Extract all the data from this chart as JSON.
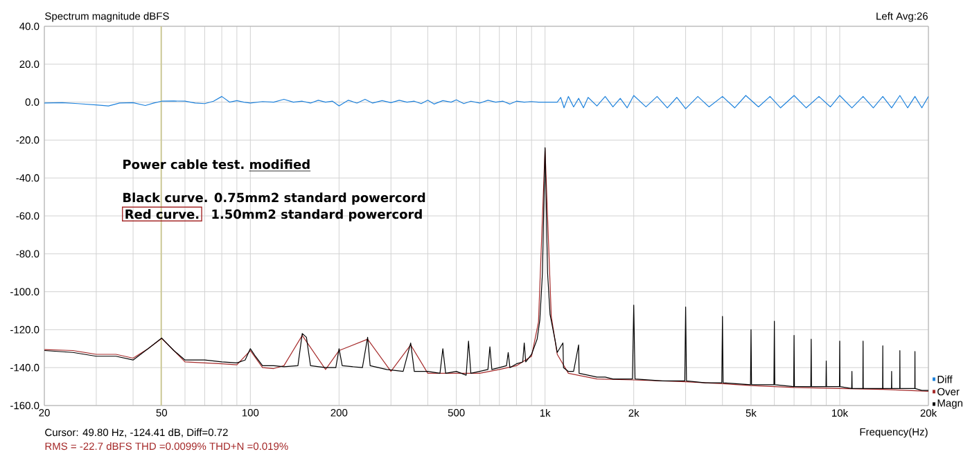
{
  "chart_data": {
    "type": "line",
    "ylabel": "Spectrum magnitude dBFS",
    "xlabel": "Frequency(Hz)",
    "annotations": [
      "Left Avg:26",
      "Power cable test.",
      "modified",
      "Black curve. 0.75mm2 standard powercord",
      "Red curve.",
      "1.50mm2 standard powercord",
      "Cursor: 49.80 Hz, -124.41 dB, Diff=0.72",
      "RMS = -22.7 dBFS THD =0.0099% THD+N =0.019%"
    ],
    "log": "x",
    "grid": true,
    "legend": "bottom right",
    "xlim": [
      20,
      20000
    ],
    "ylim": [
      -160,
      40
    ],
    "xticks": [
      20,
      {
        "value": 30,
        "label": null
      },
      {
        "value": 40,
        "label": null
      },
      50,
      {
        "value": 60,
        "label": null
      },
      {
        "value": 70,
        "label": null
      },
      {
        "value": 80,
        "label": null
      },
      {
        "value": 90,
        "label": null
      },
      100,
      200,
      {
        "value": 300,
        "label": null
      },
      {
        "value": 400,
        "label": null
      },
      500,
      {
        "value": 600,
        "label": null
      },
      {
        "value": 700,
        "label": null
      },
      {
        "value": 800,
        "label": null
      },
      {
        "value": 900,
        "label": null
      },
      {
        "value": 1000,
        "label": "1k"
      },
      {
        "value": 2000,
        "label": "2k"
      },
      {
        "value": 3000,
        "label": null
      },
      {
        "value": 4000,
        "label": null
      },
      {
        "value": 5000,
        "label": "5k"
      },
      {
        "value": 6000,
        "label": null
      },
      {
        "value": 7000,
        "label": null
      },
      {
        "value": 8000,
        "label": null
      },
      {
        "value": 9000,
        "label": null
      },
      {
        "value": 10000,
        "label": "10k"
      },
      {
        "value": 20000,
        "label": "20k"
      }
    ],
    "yticks": [
      {
        "value": 40,
        "label": "40.0"
      },
      {
        "value": 20,
        "label": "20.0"
      },
      {
        "value": 0,
        "label": "0.0"
      },
      {
        "value": -20,
        "label": "-20.0"
      },
      {
        "value": -40,
        "label": "-40.0"
      },
      {
        "value": -60,
        "label": "-60.0"
      },
      {
        "value": -80,
        "label": "-80.0"
      },
      {
        "value": -100,
        "label": "-100.0"
      },
      {
        "value": -120,
        "label": "-120.0"
      },
      {
        "value": -140,
        "label": "-140.0"
      },
      {
        "value": -160,
        "label": "-160.0"
      }
    ],
    "ref_lines": [
      {
        "axis": "x",
        "value": 49.8,
        "color": "#cdc98a"
      }
    ],
    "series": [
      {
        "name": "Diff",
        "color": "#1e82dc",
        "x": [
          20,
          23,
          26,
          30,
          33,
          36,
          40,
          44,
          47,
          50,
          55,
          60,
          65,
          70,
          75,
          80,
          85,
          90,
          95,
          100,
          110,
          120,
          130,
          140,
          150,
          160,
          170,
          180,
          190,
          200,
          215,
          230,
          245,
          260,
          280,
          300,
          320,
          340,
          360,
          380,
          400,
          420,
          450,
          480,
          500,
          530,
          560,
          600,
          640,
          680,
          720,
          760,
          800,
          850,
          900,
          950,
          1000,
          1050,
          1100,
          1130,
          1160,
          1200,
          1250,
          1300,
          1350,
          1400,
          1500,
          1600,
          1700,
          1800,
          1900,
          2000,
          2200,
          2400,
          2600,
          2800,
          3000,
          3300,
          3600,
          4000,
          4400,
          4800,
          5300,
          5800,
          6300,
          7000,
          7700,
          8500,
          9300,
          10000,
          11000,
          12000,
          13000,
          14000,
          15000,
          16000,
          17000,
          18000,
          19000,
          20000
        ],
        "values": [
          -0.5,
          -0.3,
          -0.8,
          -1.5,
          -2,
          -0.5,
          -0.3,
          -1.8,
          -0.5,
          0.5,
          0.6,
          0.5,
          -0.5,
          -0.8,
          0.5,
          3,
          0,
          0.8,
          0,
          -0.5,
          0.3,
          0,
          1.5,
          0,
          0.5,
          -0.5,
          1,
          0,
          0.5,
          -2,
          1,
          -0.5,
          1.5,
          -0.5,
          0.8,
          -0.3,
          1,
          0,
          0.5,
          -0.8,
          1,
          -1,
          0.8,
          0,
          1.2,
          -0.8,
          0.5,
          -0.5,
          1,
          0,
          0.5,
          -1,
          0.5,
          0,
          0.3,
          0,
          0,
          0,
          0,
          2.5,
          -3,
          3,
          -2.5,
          2,
          -3,
          2.5,
          -2,
          3,
          -2.5,
          2,
          -3,
          3.5,
          -2.5,
          3,
          -3,
          2.5,
          -3.5,
          3,
          -2.5,
          3,
          -3,
          3.5,
          -2.5,
          3,
          -3,
          3.5,
          -3,
          3,
          -2.5,
          3.5,
          -3,
          3,
          -3,
          3,
          -3,
          3.5,
          -3,
          3,
          -3,
          3
        ]
      },
      {
        "name": "Over",
        "color": "#a52a2a",
        "x": [
          20,
          25,
          30,
          35,
          40,
          45,
          50,
          55,
          60,
          70,
          80,
          90,
          100,
          110,
          120,
          130,
          150,
          180,
          200,
          250,
          300,
          350,
          400,
          500,
          600,
          700,
          800,
          900,
          950,
          1000,
          1050,
          1100,
          1200,
          1500,
          2000,
          3000,
          4000,
          5000,
          7000,
          10000,
          14000,
          20000
        ],
        "values": [
          -130.5,
          -131,
          -133,
          -133,
          -135,
          -130,
          -124.6,
          -131,
          -137,
          -137.5,
          -138,
          -138.5,
          -131,
          -140,
          -140.5,
          -139,
          -123,
          -141,
          -131,
          -125,
          -142,
          -128,
          -143,
          -143,
          -143,
          -141,
          -139,
          -134,
          -116,
          -24.5,
          -113,
          -133,
          -143,
          -146,
          -146.5,
          -147.5,
          -148.5,
          -149.5,
          -150.5,
          -151,
          -151.5,
          -152.5
        ]
      },
      {
        "name": "Magn",
        "color": "#000000",
        "x": [
          20,
          25,
          30,
          35,
          40,
          45,
          50,
          55,
          60,
          70,
          80,
          90,
          96,
          100,
          104,
          110,
          120,
          130,
          145,
          150,
          155,
          160,
          180,
          195,
          200,
          205,
          240,
          250,
          255,
          290,
          330,
          350,
          360,
          400,
          440,
          450,
          460,
          500,
          540,
          550,
          560,
          600,
          640,
          650,
          660,
          700,
          740,
          750,
          760,
          800,
          840,
          850,
          860,
          900,
          940,
          960,
          980,
          1000,
          1020,
          1040,
          1080,
          1100,
          1150,
          1155,
          1200,
          1250,
          1300,
          1305,
          1400,
          1500,
          1600,
          1700,
          1800,
          1900,
          1980,
          2000,
          2020,
          2500,
          2980,
          3000,
          3020,
          3500,
          3980,
          4000,
          4020,
          4980,
          5000,
          5020,
          5980,
          6000,
          6020,
          6980,
          7000,
          7020,
          7980,
          8000,
          8020,
          8980,
          9000,
          9020,
          9980,
          10000,
          10020,
          10980,
          11000,
          11020,
          11980,
          12000,
          12020,
          13980,
          14000,
          14020,
          14980,
          15000,
          15020,
          15980,
          16000,
          16020,
          17980,
          18000,
          18020,
          19000,
          20000
        ],
        "values": [
          -131,
          -132,
          -134,
          -134,
          -136,
          -130,
          -124.4,
          -131,
          -136,
          -136,
          -137,
          -137.5,
          -136,
          -130,
          -134,
          -139,
          -139,
          -139.5,
          -139,
          -122,
          -124,
          -139,
          -140,
          -140,
          -130,
          -139,
          -140,
          -124,
          -139,
          -141,
          -142,
          -127,
          -142,
          -142,
          -143,
          -130,
          -143,
          -142,
          -144,
          -126,
          -143,
          -142,
          -141,
          -129,
          -141,
          -140,
          -139,
          -132,
          -140,
          -138,
          -137,
          -127,
          -137,
          -133,
          -125,
          -115,
          -90,
          -24,
          -90,
          -112,
          -125,
          -132,
          -127,
          -140,
          -142,
          -142,
          -128,
          -143,
          -144,
          -145,
          -145,
          -146,
          -146,
          -146,
          -146,
          -107,
          -146,
          -147,
          -147,
          -108,
          -147,
          -148,
          -148,
          -113,
          -148,
          -149,
          -120,
          -149,
          -149,
          -115.5,
          -149,
          -150,
          -123,
          -150,
          -150,
          -125,
          -150,
          -150,
          -136.5,
          -150,
          -150,
          -126,
          -150,
          -151,
          -142,
          -151,
          -151,
          -126,
          -151,
          -151,
          -128.5,
          -151,
          -151,
          -142,
          -151,
          -151,
          -131,
          -151,
          -151,
          -131.5,
          -151,
          -152,
          -152
        ]
      }
    ]
  }
}
